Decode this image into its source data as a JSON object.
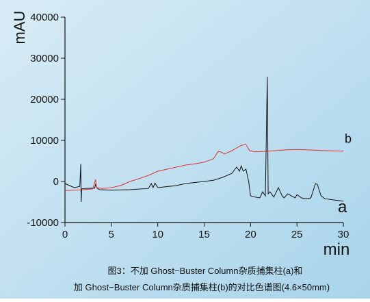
{
  "chart_data": {
    "type": "line",
    "y_label": "mAU",
    "x_label": "min",
    "caption": [
      "图3：不加 Ghost−Buster Column杂质捕集柱(a)和",
      "加 Ghost−Buster Column杂质捕集柱(b)的对比色谱图(4.6×50mm)"
    ],
    "xlim": [
      0,
      30
    ],
    "xticks": [
      0,
      5,
      10,
      15,
      20,
      25,
      30
    ],
    "ylim": [
      -10000,
      40000
    ],
    "yticks": [
      -10000,
      0,
      10000,
      20000,
      30000,
      40000
    ],
    "series": [
      {
        "name": "a",
        "color": "#111111",
        "x": [
          0,
          0.5,
          1,
          1.6,
          1.7,
          1.75,
          1.8,
          2.2,
          3.2,
          3.3,
          3.4,
          3.7,
          5,
          7,
          9,
          9.3,
          9.5,
          9.7,
          10,
          12,
          13,
          15,
          16,
          17,
          18,
          18.5,
          18.8,
          19,
          19.2,
          19.5,
          19.8,
          20,
          20.5,
          21,
          21.3,
          21.6,
          21.8,
          21.9,
          22.1,
          22.5,
          23,
          23.4,
          23.6,
          24,
          24.8,
          25,
          25.5,
          26,
          26.5,
          27,
          27.2,
          27.6,
          28,
          29,
          30
        ],
        "values": [
          -500,
          -1000,
          -1500,
          -1200,
          4200,
          -5000,
          -1800,
          -1700,
          -1600,
          -700,
          -1500,
          -2000,
          -2100,
          -2000,
          -1700,
          -500,
          -1500,
          -400,
          -1500,
          -1000,
          -500,
          0,
          300,
          1000,
          2000,
          3500,
          2500,
          3800,
          2500,
          3000,
          0,
          -3500,
          -3800,
          -4000,
          -2500,
          -3500,
          25500,
          -3000,
          -2500,
          -3800,
          -1500,
          -3500,
          -4000,
          -3000,
          -4000,
          -3200,
          -4000,
          -4200,
          -4000,
          -500,
          -700,
          -3500,
          -4200,
          -4500,
          -4800
        ]
      },
      {
        "name": "b",
        "color": "#e03030",
        "x": [
          0,
          1,
          2,
          3,
          3.3,
          3.4,
          4,
          5,
          6,
          7,
          8,
          9,
          10,
          11,
          12,
          13,
          14,
          15,
          16,
          16.5,
          16.8,
          17.2,
          18,
          19,
          19.5,
          19.9,
          20.5,
          22,
          24,
          25,
          26,
          28,
          30
        ],
        "values": [
          -2200,
          -2100,
          -2000,
          -1800,
          500,
          -1500,
          -1700,
          -1500,
          -1000,
          0,
          700,
          1500,
          2500,
          3000,
          3500,
          4000,
          4300,
          4700,
          5500,
          7300,
          7200,
          6700,
          7500,
          8800,
          9000,
          7500,
          7200,
          7400,
          7700,
          7800,
          7700,
          7500,
          7400
        ]
      }
    ]
  }
}
